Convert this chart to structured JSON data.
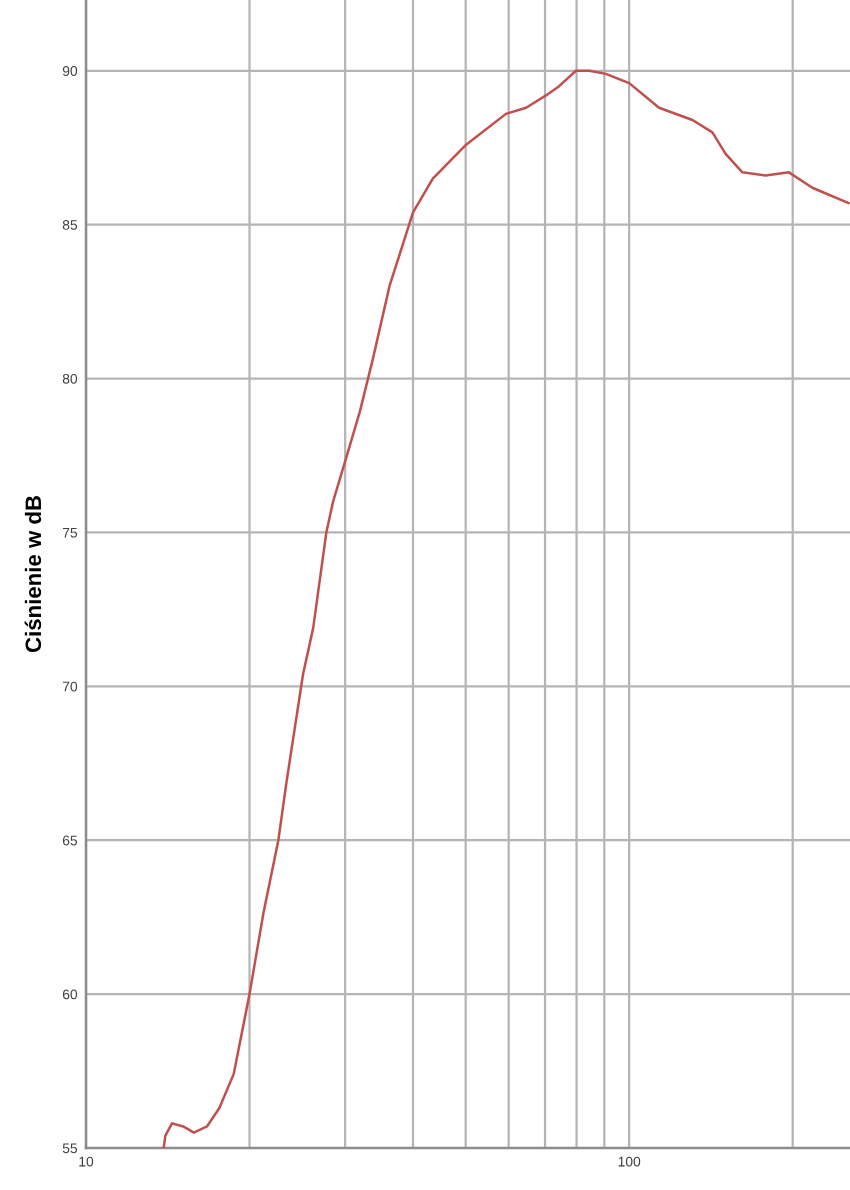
{
  "chart_data": {
    "type": "line",
    "ylabel": "Ciśnienie w dB",
    "log": "x",
    "grid": true,
    "marker": "none",
    "line_style": "solid",
    "xlim": [
      10,
      255
    ],
    "ylim": [
      55,
      92.3
    ],
    "xticks": [
      10,
      {
        "value": 20,
        "label": null
      },
      {
        "value": 30,
        "label": null
      },
      {
        "value": 40,
        "label": null
      },
      {
        "value": 50,
        "label": null
      },
      {
        "value": 60,
        "label": null
      },
      {
        "value": 70,
        "label": null
      },
      {
        "value": 80,
        "label": null
      },
      {
        "value": 90,
        "label": null
      },
      100,
      {
        "value": 200,
        "label": null
      }
    ],
    "yticks": [
      55,
      60,
      65,
      70,
      75,
      80,
      85,
      90
    ],
    "series": [
      {
        "color": "#c0504d",
        "x": [
          13.9,
          14.0,
          14.4,
          15.1,
          15.8,
          16.7,
          17.6,
          18.7,
          20.0,
          21.2,
          22.6,
          23.4,
          25.1,
          26.2,
          27.7,
          28.5,
          30.1,
          31.9,
          33.7,
          36.2,
          40.0,
          43.5,
          50.1,
          59.3,
          64.6,
          70.3,
          74.3,
          79.8,
          84.4,
          90.6,
          100,
          113.5,
          130.8,
          142.3,
          150.5,
          161.6,
          178.3,
          196.8,
          217.4,
          253.6
        ],
        "values": [
          55.0,
          55.4,
          55.8,
          55.7,
          55.5,
          55.7,
          56.3,
          57.4,
          60.0,
          62.6,
          65.0,
          66.9,
          70.4,
          71.9,
          75.0,
          76.0,
          77.4,
          78.9,
          80.6,
          83.0,
          85.4,
          86.5,
          87.6,
          88.6,
          88.8,
          89.2,
          89.5,
          90.0,
          90.0,
          89.9,
          89.6,
          88.8,
          88.4,
          88.0,
          87.3,
          86.7,
          86.6,
          86.7,
          86.2,
          85.7
        ]
      }
    ]
  }
}
